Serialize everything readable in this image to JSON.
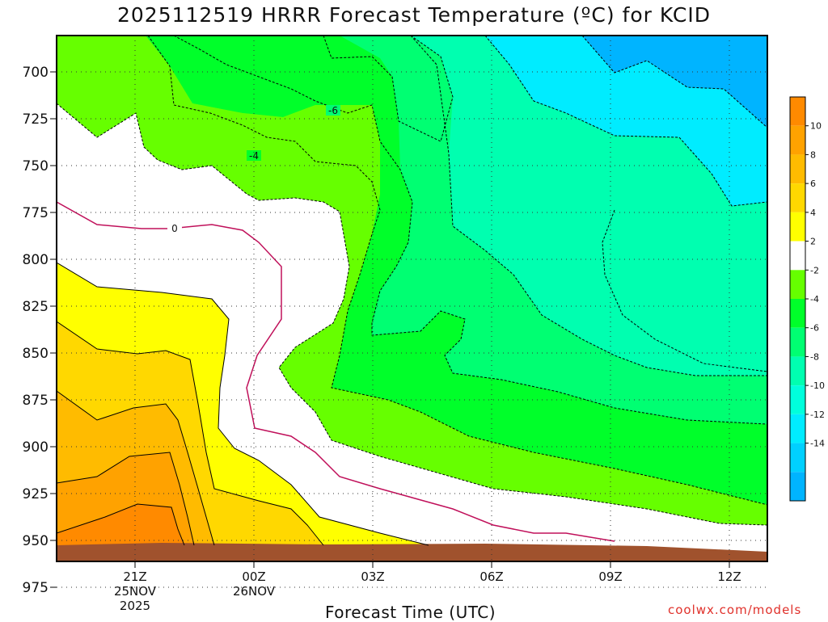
{
  "title": "2025112519 HRRR Forecast Temperature (ºC) for KCID",
  "xlabel": "Forecast Time (UTC)",
  "credit": "coolwx.com/models",
  "chart_data": {
    "type": "contour",
    "title": "2025112519 HRRR Forecast Temperature (ºC) for KCID",
    "xlabel": "Forecast Time (UTC)",
    "ylabel": "",
    "x_range_hours_utc": [
      "25NOV 19Z",
      "26NOV 13Z"
    ],
    "y_range_hPa": [
      985,
      680
    ],
    "y_ticks": [
      "700",
      "725",
      "750",
      "775",
      "800",
      "825",
      "850",
      "875",
      "900",
      "925",
      "950",
      "975"
    ],
    "x_ticks": [
      {
        "label": "21Z",
        "date": "25NOV",
        "year": "2025"
      },
      {
        "label": "00Z",
        "date": "26NOV",
        "year": ""
      },
      {
        "label": "03Z",
        "date": "",
        "year": ""
      },
      {
        "label": "06Z",
        "date": "",
        "year": ""
      },
      {
        "label": "09Z",
        "date": "",
        "year": ""
      },
      {
        "label": "12Z",
        "date": "",
        "year": ""
      }
    ],
    "grid": true,
    "contour_labels": [
      "0",
      "-4",
      "-6"
    ],
    "colorbar_ticks": [
      "10",
      "8",
      "6",
      "4",
      "2",
      "-2",
      "-4",
      "-6",
      "-8",
      "-10",
      "-12",
      "-14"
    ],
    "colorbar_colors": [
      "#ff8a00",
      "#ffa200",
      "#ffbb00",
      "#ffd800",
      "#ffff00",
      "#ffffff",
      "#66ff00",
      "#00ff2a",
      "#00ff72",
      "#00ffb0",
      "#00ffdc",
      "#00ecff",
      "#00d0ff",
      "#00b4ff"
    ],
    "ground_color": "#a0522d"
  }
}
